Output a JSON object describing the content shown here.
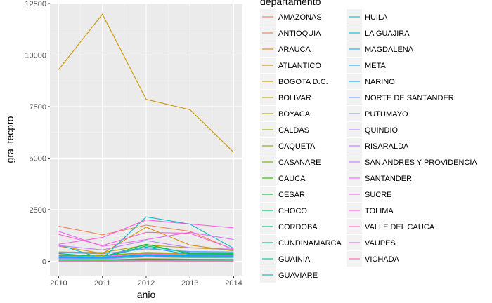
{
  "chart_data": {
    "type": "line",
    "title": "",
    "xlabel": "anio",
    "ylabel": "gra_tecpro",
    "x": [
      2010,
      2011,
      2012,
      2013,
      2014
    ],
    "x_ticks": [
      "2010",
      "2011",
      "2012",
      "2013",
      "2014"
    ],
    "y_ticks": [
      "0",
      "2500",
      "5000",
      "7500",
      "10000",
      "12500"
    ],
    "xlim": [
      2009.8,
      2014.2
    ],
    "ylim": [
      -700,
      12500
    ],
    "grid": true,
    "legend_title": "departamento",
    "legend_position": "right",
    "series": [
      {
        "name": "AMAZONAS",
        "color": "#F8766D",
        "values": [
          20,
          15,
          25,
          20,
          18
        ]
      },
      {
        "name": "ANTIOQUIA",
        "color": "#F07F52",
        "values": [
          1700,
          1280,
          1750,
          1450,
          560
        ]
      },
      {
        "name": "ARAUCA",
        "color": "#E58700",
        "values": [
          60,
          50,
          70,
          55,
          50
        ]
      },
      {
        "name": "ATLANTICO",
        "color": "#D89000",
        "values": [
          730,
          380,
          1650,
          780,
          500
        ]
      },
      {
        "name": "BOGOTA D.C.",
        "color": "#CB9900",
        "values": [
          9300,
          11980,
          7850,
          7350,
          5280
        ]
      },
      {
        "name": "BOLIVAR",
        "color": "#BC9F00",
        "values": [
          450,
          420,
          780,
          650,
          560
        ]
      },
      {
        "name": "BOYACA",
        "color": "#ADA400",
        "values": [
          250,
          300,
          380,
          350,
          340
        ]
      },
      {
        "name": "CALDAS",
        "color": "#9AA800",
        "values": [
          320,
          270,
          430,
          380,
          370
        ]
      },
      {
        "name": "CAQUETA",
        "color": "#83AD00",
        "values": [
          40,
          30,
          60,
          50,
          45
        ]
      },
      {
        "name": "CASANARE",
        "color": "#66B100",
        "values": [
          80,
          70,
          120,
          100,
          90
        ]
      },
      {
        "name": "CAUCA",
        "color": "#32B600",
        "values": [
          180,
          150,
          250,
          210,
          200
        ]
      },
      {
        "name": "CESAR",
        "color": "#00BA38",
        "values": [
          280,
          210,
          820,
          360,
          350
        ]
      },
      {
        "name": "CHOCO",
        "color": "#00BC55",
        "values": [
          70,
          50,
          100,
          80,
          70
        ]
      },
      {
        "name": "CORDOBA",
        "color": "#00BE6D",
        "values": [
          380,
          190,
          740,
          420,
          410
        ]
      },
      {
        "name": "CUNDINAMARCA",
        "color": "#00C084",
        "values": [
          190,
          170,
          320,
          280,
          260
        ]
      },
      {
        "name": "GUAINIA",
        "color": "#00C19A",
        "values": [
          10,
          8,
          12,
          10,
          9
        ]
      },
      {
        "name": "GUAVIARE",
        "color": "#00C0AF",
        "values": [
          15,
          12,
          20,
          16,
          15
        ]
      },
      {
        "name": "HUILA",
        "color": "#00BFC4",
        "values": [
          800,
          120,
          2150,
          1800,
          620
        ]
      },
      {
        "name": "LA GUAJIRA",
        "color": "#00BBD6",
        "values": [
          150,
          130,
          260,
          220,
          210
        ]
      },
      {
        "name": "MAGDALENA",
        "color": "#00B6E7",
        "values": [
          230,
          190,
          680,
          320,
          310
        ]
      },
      {
        "name": "META",
        "color": "#00B0F6",
        "values": [
          200,
          180,
          290,
          250,
          240
        ]
      },
      {
        "name": "NARINO",
        "color": "#00A6FF",
        "values": [
          220,
          200,
          300,
          270,
          260
        ]
      },
      {
        "name": "NORTE DE SANTANDER",
        "color": "#619CFF",
        "values": [
          420,
          360,
          600,
          470,
          450
        ]
      },
      {
        "name": "PUTUMAYO",
        "color": "#8D92FF",
        "values": [
          35,
          25,
          50,
          40,
          35
        ]
      },
      {
        "name": "QUINDIO",
        "color": "#AC88FF",
        "values": [
          130,
          110,
          200,
          170,
          160
        ]
      },
      {
        "name": "RISARALDA",
        "color": "#C37EFF",
        "values": [
          760,
          550,
          1000,
          650,
          620
        ]
      },
      {
        "name": "SAN ANDRES Y PROVIDENCIA",
        "color": "#D575FE",
        "values": [
          30,
          25,
          40,
          35,
          30
        ]
      },
      {
        "name": "SANTANDER",
        "color": "#E36EF6",
        "values": [
          1450,
          720,
          1050,
          1400,
          1050
        ]
      },
      {
        "name": "SUCRE",
        "color": "#EF67EB",
        "values": [
          250,
          230,
          350,
          300,
          290
        ]
      },
      {
        "name": "TOLIMA",
        "color": "#F862DF",
        "values": [
          820,
          1150,
          2000,
          1800,
          1620
        ]
      },
      {
        "name": "VALLE DEL CAUCA",
        "color": "#FD61D1",
        "values": [
          1300,
          760,
          1400,
          1350,
          580
        ]
      },
      {
        "name": "VAUPES",
        "color": "#FF62C2",
        "values": [
          8,
          6,
          10,
          9,
          8
        ]
      },
      {
        "name": "VICHADA",
        "color": "#FF66A8",
        "values": [
          12,
          10,
          15,
          13,
          12
        ]
      }
    ]
  }
}
